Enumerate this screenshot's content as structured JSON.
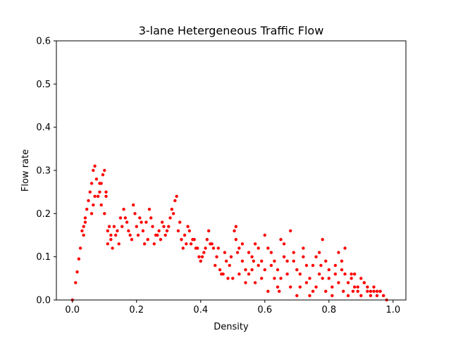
{
  "chart_data": {
    "type": "scatter",
    "title": "3-lane Hetergeneous Traffic Flow",
    "xlabel": "Density",
    "ylabel": "Flow rate",
    "xlim": [
      -0.05,
      1.04
    ],
    "ylim": [
      0,
      0.6
    ],
    "xticks": [
      "0.0",
      "0.2",
      "0.4",
      "0.6",
      "0.8",
      "1.0"
    ],
    "yticks": [
      "0.0",
      "0.1",
      "0.2",
      "0.3",
      "0.4",
      "0.5",
      "0.6"
    ],
    "grid": false,
    "marker_color": "#ff0000",
    "x": [
      0.0,
      0.01,
      0.015,
      0.02,
      0.025,
      0.03,
      0.035,
      0.04,
      0.045,
      0.05,
      0.055,
      0.06,
      0.065,
      0.07,
      0.075,
      0.08,
      0.085,
      0.09,
      0.095,
      0.1,
      0.105,
      0.11,
      0.12,
      0.13,
      0.14,
      0.15,
      0.16,
      0.17,
      0.18,
      0.19,
      0.2,
      0.21,
      0.22,
      0.23,
      0.24,
      0.25,
      0.26,
      0.27,
      0.28,
      0.29,
      0.3,
      0.31,
      0.32,
      0.33,
      0.34,
      0.35,
      0.36,
      0.37,
      0.38,
      0.39,
      0.4,
      0.41,
      0.42,
      0.43,
      0.44,
      0.45,
      0.46,
      0.47,
      0.48,
      0.49,
      0.5,
      0.51,
      0.52,
      0.53,
      0.54,
      0.55,
      0.56,
      0.57,
      0.58,
      0.59,
      0.6,
      0.61,
      0.62,
      0.63,
      0.64,
      0.65,
      0.66,
      0.67,
      0.68,
      0.69,
      0.7,
      0.71,
      0.72,
      0.73,
      0.74,
      0.75,
      0.76,
      0.77,
      0.78,
      0.79,
      0.8,
      0.81,
      0.82,
      0.83,
      0.84,
      0.85,
      0.86,
      0.87,
      0.88,
      0.89,
      0.9,
      0.91,
      0.92,
      0.93,
      0.94,
      0.95,
      0.96,
      0.97,
      0.98
    ],
    "y": [
      0.0,
      0.04,
      0.065,
      0.095,
      0.12,
      0.16,
      0.17,
      0.19,
      0.21,
      0.23,
      0.25,
      0.27,
      0.3,
      0.31,
      0.28,
      0.24,
      0.25,
      0.27,
      0.29,
      0.3,
      0.24,
      0.16,
      0.15,
      0.17,
      0.16,
      0.19,
      0.21,
      0.18,
      0.15,
      0.22,
      0.17,
      0.19,
      0.16,
      0.18,
      0.21,
      0.17,
      0.15,
      0.16,
      0.18,
      0.15,
      0.17,
      0.21,
      0.23,
      0.16,
      0.14,
      0.15,
      0.17,
      0.13,
      0.14,
      0.12,
      0.09,
      0.11,
      0.14,
      0.13,
      0.12,
      0.1,
      0.07,
      0.06,
      0.09,
      0.08,
      0.05,
      0.17,
      0.12,
      0.09,
      0.07,
      0.06,
      0.1,
      0.13,
      0.08,
      0.05,
      0.15,
      0.12,
      0.08,
      0.05,
      0.03,
      0.14,
      0.1,
      0.06,
      0.16,
      0.11,
      0.07,
      0.03,
      0.12,
      0.08,
      0.05,
      0.02,
      0.1,
      0.06,
      0.14,
      0.09,
      0.05,
      0.03,
      0.08,
      0.11,
      0.07,
      0.12,
      0.04,
      0.06,
      0.03,
      0.02,
      0.05,
      0.04,
      0.03,
      0.02,
      0.03,
      0.02,
      0.02,
      0.01,
      0.0
    ],
    "x_extra": [
      0.035,
      0.04,
      0.06,
      0.065,
      0.07,
      0.085,
      0.09,
      0.1,
      0.105,
      0.11,
      0.115,
      0.12,
      0.125,
      0.135,
      0.145,
      0.155,
      0.165,
      0.175,
      0.185,
      0.195,
      0.205,
      0.215,
      0.225,
      0.235,
      0.245,
      0.255,
      0.265,
      0.275,
      0.285,
      0.295,
      0.305,
      0.315,
      0.325,
      0.335,
      0.345,
      0.355,
      0.365,
      0.375,
      0.385,
      0.395,
      0.405,
      0.415,
      0.425,
      0.435,
      0.445,
      0.455,
      0.465,
      0.475,
      0.485,
      0.495,
      0.505,
      0.51,
      0.515,
      0.52,
      0.53,
      0.54,
      0.55,
      0.56,
      0.565,
      0.57,
      0.58,
      0.59,
      0.6,
      0.61,
      0.62,
      0.63,
      0.64,
      0.645,
      0.65,
      0.66,
      0.67,
      0.68,
      0.69,
      0.7,
      0.71,
      0.72,
      0.73,
      0.74,
      0.75,
      0.76,
      0.77,
      0.775,
      0.78,
      0.79,
      0.8,
      0.81,
      0.82,
      0.83,
      0.84,
      0.845,
      0.85,
      0.86,
      0.87,
      0.875,
      0.88,
      0.89,
      0.9,
      0.91,
      0.92,
      0.93,
      0.94,
      0.95,
      0.96,
      0.97
    ],
    "y_extra": [
      0.15,
      0.18,
      0.2,
      0.22,
      0.24,
      0.27,
      0.22,
      0.2,
      0.25,
      0.13,
      0.17,
      0.14,
      0.12,
      0.15,
      0.13,
      0.17,
      0.19,
      0.16,
      0.14,
      0.2,
      0.15,
      0.18,
      0.13,
      0.14,
      0.19,
      0.13,
      0.15,
      0.14,
      0.17,
      0.16,
      0.19,
      0.2,
      0.24,
      0.18,
      0.12,
      0.13,
      0.16,
      0.14,
      0.12,
      0.1,
      0.1,
      0.12,
      0.16,
      0.13,
      0.08,
      0.12,
      0.06,
      0.11,
      0.05,
      0.1,
      0.16,
      0.14,
      0.11,
      0.06,
      0.13,
      0.04,
      0.11,
      0.07,
      0.09,
      0.04,
      0.12,
      0.09,
      0.07,
      0.02,
      0.11,
      0.09,
      0.07,
      0.02,
      0.05,
      0.13,
      0.09,
      0.03,
      0.09,
      0.01,
      0.06,
      0.1,
      0.04,
      0.01,
      0.08,
      0.03,
      0.11,
      0.08,
      0.05,
      0.02,
      0.07,
      0.01,
      0.06,
      0.04,
      0.09,
      0.02,
      0.06,
      0.01,
      0.05,
      0.02,
      0.06,
      0.03,
      0.01,
      0.04,
      0.02,
      0.01,
      0.02,
      0.01,
      0.02,
      0.01
    ]
  }
}
